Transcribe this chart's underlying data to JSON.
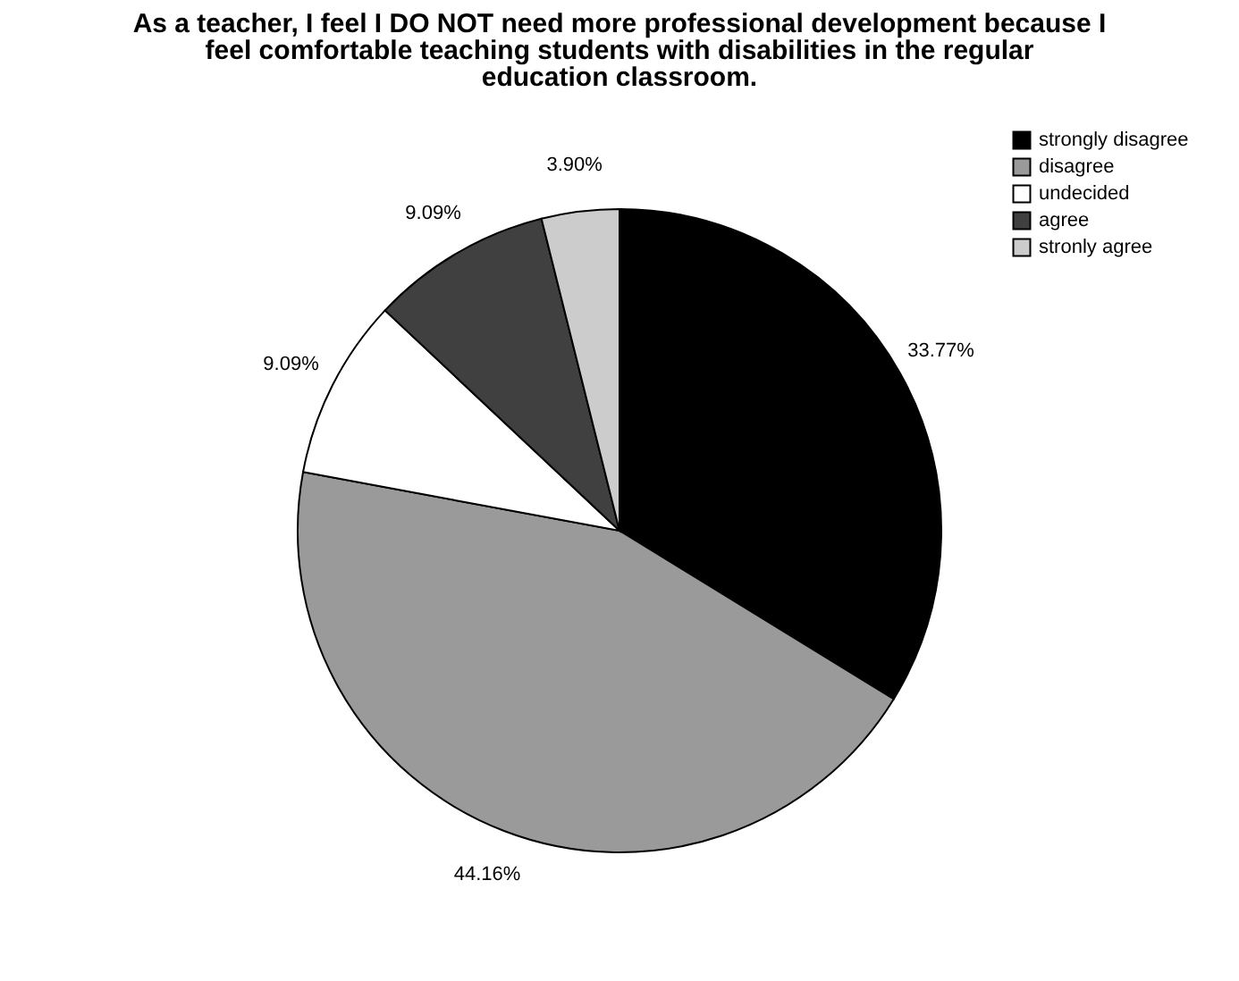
{
  "chart_data": {
    "type": "pie",
    "title": "As a teacher, I feel I DO NOT need more professional development because I feel comfortable teaching students with disabilities in the regular education classroom.",
    "categories": [
      "strongly disagree",
      "disagree",
      "undecided",
      "agree",
      "stronly agree"
    ],
    "values": [
      33.77,
      44.16,
      9.09,
      9.09,
      3.9
    ],
    "value_labels": [
      "33.77%",
      "44.16%",
      "9.09%",
      "9.09%",
      "3.90%"
    ],
    "colors": [
      "#000000",
      "#9a9a9a",
      "#ffffff",
      "#404040",
      "#cccccc"
    ],
    "legend": "top right"
  }
}
